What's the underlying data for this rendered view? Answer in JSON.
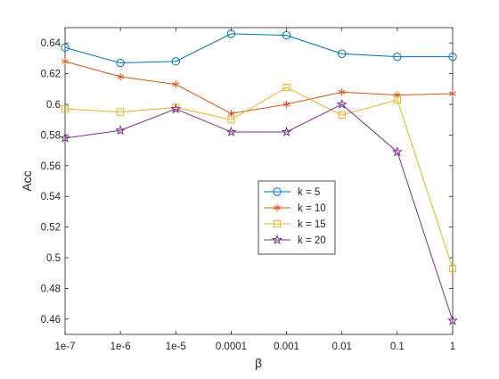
{
  "chart_data": {
    "type": "line",
    "title": "",
    "xlabel": "β",
    "ylabel": "Acc",
    "categories": [
      "1e-7",
      "1e-6",
      "1e-5",
      "0.0001",
      "0.001",
      "0.01",
      "0.1",
      "1"
    ],
    "ylim": [
      0.45,
      0.65
    ],
    "yticks": [
      0.46,
      0.48,
      0.5,
      0.52,
      0.54,
      0.56,
      0.58,
      0.6,
      0.62,
      0.64
    ],
    "ytick_labels": [
      "0.46",
      "0.48",
      "0.5",
      "0.52",
      "0.54",
      "0.56",
      "0.58",
      "0.6",
      "0.62",
      "0.64"
    ],
    "grid": false,
    "legend_position": "center-right",
    "series": [
      {
        "name": "k = 5",
        "marker": "circle",
        "color": "#0072BD",
        "values": [
          0.637,
          0.627,
          0.628,
          0.646,
          0.645,
          0.633,
          0.631,
          0.631
        ]
      },
      {
        "name": "k = 10",
        "marker": "asterisk",
        "color": "#D95319",
        "values": [
          0.628,
          0.618,
          0.613,
          0.594,
          0.6,
          0.608,
          0.606,
          0.607
        ]
      },
      {
        "name": "k = 15",
        "marker": "square",
        "color": "#EDB120",
        "values": [
          0.597,
          0.595,
          0.598,
          0.59,
          0.611,
          0.593,
          0.603,
          0.493
        ]
      },
      {
        "name": "k = 20",
        "marker": "pentagram",
        "color": "#7E2F8E",
        "values": [
          0.578,
          0.583,
          0.597,
          0.582,
          0.582,
          0.6,
          0.569,
          0.459
        ]
      }
    ]
  }
}
